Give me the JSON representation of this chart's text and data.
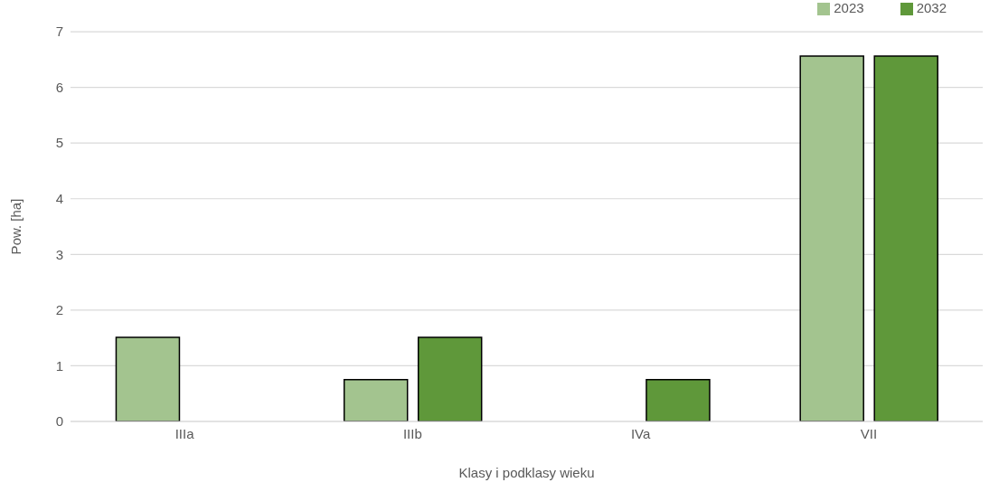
{
  "chart_data": {
    "type": "bar",
    "xlabel": "Klasy i podklasy wieku",
    "ylabel": "Pow. [ha]",
    "categories": [
      "IIIa",
      "IIIb",
      "IVa",
      "VII"
    ],
    "series": [
      {
        "name": "2023",
        "color": "#a3c48f",
        "values": [
          1.51,
          0.75,
          0,
          6.56
        ]
      },
      {
        "name": "2032",
        "color": "#5f983a",
        "values": [
          0,
          1.51,
          0.75,
          6.56
        ]
      }
    ],
    "ylim": [
      0,
      7
    ],
    "yticks": [
      0,
      1,
      2,
      3,
      4,
      5,
      6,
      7
    ],
    "grid": "y",
    "legend": "top right"
  }
}
